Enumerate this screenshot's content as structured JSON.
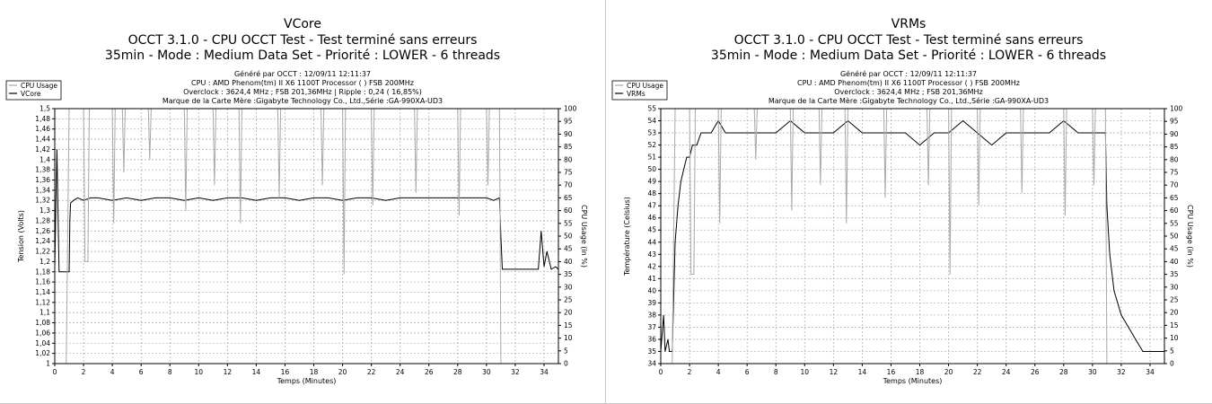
{
  "charts": [
    {
      "title": "VCore",
      "subtitle1": "OCCT 3.1.0 - CPU OCCT Test - Test terminé sans erreurs",
      "subtitle2": "35min - Mode : Medium Data Set - Priorité : LOWER - 6 threads",
      "info": [
        "Généré par OCCT : 12/09/11 12:11:37",
        "CPU : AMD Phenom(tm) II X6 1100T Processor ( ) FSB 200MHz",
        "Overclock : 3624,4 MHz ; FSB 201,36MHz | Ripple : 0,24 ( 16,85%)",
        "Marque de la Carte Mère :Gigabyte Technology Co., Ltd.,Série :GA-990XA-UD3"
      ],
      "legend": [
        "CPU Usage",
        "VCore"
      ],
      "xlabel": "Temps (Minutes)",
      "ylabel_left": "Tension (Volts)",
      "ylabel_right": "CPU Usage (in %)"
    },
    {
      "title": "VRMs",
      "subtitle1": "OCCT 3.1.0 - CPU OCCT Test - Test terminé sans erreurs",
      "subtitle2": "35min - Mode : Medium Data Set - Priorité : LOWER - 6 threads",
      "info": [
        "Généré par OCCT : 12/09/11 12:11:37",
        "CPU : AMD Phenom(tm) II X6 1100T Processor ( ) FSB 200MHz",
        "Overclock : 3624,4 MHz ; FSB 201,36MHz",
        "Marque de la Carte Mère :Gigabyte Technology Co., Ltd.,Série :GA-990XA-UD3"
      ],
      "legend": [
        "CPU Usage",
        "VRMs"
      ],
      "xlabel": "Temps (Minutes)",
      "ylabel_left": "Température (Celsius)",
      "ylabel_right": "CPU Usage (in %)"
    }
  ],
  "chart_data": [
    {
      "type": "line",
      "title": "VCore",
      "xlabel": "Temps (Minutes)",
      "ylabel": "Tension (Volts)",
      "y2label": "CPU Usage (in %)",
      "xlim": [
        0,
        35
      ],
      "ylim": [
        1,
        1.5
      ],
      "y2lim": [
        0,
        100
      ],
      "xticks": [
        0,
        2,
        4,
        6,
        8,
        10,
        12,
        14,
        16,
        18,
        20,
        22,
        24,
        26,
        28,
        30,
        32,
        34
      ],
      "yticks": [
        "1",
        "1,02",
        "1,04",
        "1,06",
        "1,08",
        "1,1",
        "1,12",
        "1,14",
        "1,16",
        "1,18",
        "1,2",
        "1,22",
        "1,24",
        "1,26",
        "1,28",
        "1,3",
        "1,32",
        "1,34",
        "1,36",
        "1,38",
        "1,4",
        "1,42",
        "1,44",
        "1,46",
        "1,48",
        "1,5"
      ],
      "y2ticks": [
        0,
        5,
        10,
        15,
        20,
        25,
        30,
        35,
        40,
        45,
        50,
        55,
        60,
        65,
        70,
        75,
        80,
        85,
        90,
        95,
        100
      ],
      "grid": true,
      "legend_position": "top-left",
      "series": [
        {
          "name": "VCore",
          "axis": "left",
          "color": "#000000",
          "x": [
            0,
            0.15,
            0.3,
            0.5,
            0.8,
            1.0,
            1.05,
            1.1,
            1.3,
            1.6,
            2.0,
            2.5,
            3.0,
            4.0,
            5.0,
            6.0,
            7.0,
            8.0,
            9.0,
            10.0,
            11.0,
            12.0,
            13.0,
            14.0,
            15.0,
            16.0,
            17.0,
            18.0,
            19.0,
            20.0,
            21.0,
            22.0,
            23.0,
            24.0,
            25.0,
            26.0,
            27.0,
            28.0,
            29.0,
            30.0,
            30.5,
            30.9,
            31.0,
            31.1,
            32.0,
            33.0,
            33.6,
            33.8,
            34.0,
            34.2,
            34.5,
            34.8,
            35.0
          ],
          "y": [
            1.19,
            1.42,
            1.18,
            1.18,
            1.18,
            1.18,
            1.28,
            1.315,
            1.32,
            1.325,
            1.32,
            1.325,
            1.325,
            1.32,
            1.325,
            1.32,
            1.325,
            1.325,
            1.32,
            1.325,
            1.32,
            1.325,
            1.325,
            1.32,
            1.325,
            1.325,
            1.32,
            1.325,
            1.325,
            1.32,
            1.325,
            1.325,
            1.32,
            1.325,
            1.325,
            1.325,
            1.325,
            1.325,
            1.325,
            1.325,
            1.32,
            1.325,
            1.25,
            1.185,
            1.185,
            1.185,
            1.185,
            1.26,
            1.19,
            1.22,
            1.185,
            1.19,
            1.185
          ]
        },
        {
          "name": "CPU Usage",
          "axis": "right",
          "color": "#a8a8a8",
          "x": [
            0,
            0.8,
            1.0,
            1.1,
            2.0,
            2.1,
            2.3,
            2.4,
            3.0,
            4.0,
            4.1,
            4.2,
            4.7,
            4.8,
            4.9,
            6.0,
            6.5,
            6.6,
            6.7,
            8.0,
            9.0,
            9.1,
            9.2,
            10.0,
            11.0,
            11.1,
            11.2,
            12.0,
            12.8,
            12.9,
            13.0,
            14.0,
            15.5,
            15.6,
            15.7,
            17.0,
            18.5,
            18.6,
            18.7,
            20.0,
            20.1,
            20.2,
            20.3,
            21.0,
            22.0,
            22.1,
            22.2,
            24.0,
            25.0,
            25.1,
            25.2,
            27.0,
            28.0,
            28.1,
            28.2,
            29.5,
            30.0,
            30.1,
            30.2,
            30.9,
            31.0,
            35.0
          ],
          "y": [
            0,
            0,
            100,
            100,
            100,
            40,
            40,
            100,
            100,
            100,
            55,
            100,
            100,
            75,
            100,
            100,
            100,
            80,
            100,
            100,
            100,
            60,
            100,
            100,
            100,
            70,
            100,
            100,
            100,
            55,
            100,
            100,
            100,
            65,
            100,
            100,
            100,
            70,
            100,
            100,
            35,
            100,
            100,
            100,
            100,
            62,
            100,
            100,
            100,
            67,
            100,
            100,
            100,
            58,
            100,
            100,
            100,
            70,
            100,
            100,
            0,
            0
          ]
        }
      ]
    },
    {
      "type": "line",
      "title": "VRMs",
      "xlabel": "Temps (Minutes)",
      "ylabel": "Température (Celsius)",
      "y2label": "CPU Usage (in %)",
      "xlim": [
        0,
        35
      ],
      "ylim": [
        34,
        55
      ],
      "y2lim": [
        0,
        100
      ],
      "xticks": [
        0,
        2,
        4,
        6,
        8,
        10,
        12,
        14,
        16,
        18,
        20,
        22,
        24,
        26,
        28,
        30,
        32,
        34
      ],
      "yticks": [
        "34",
        "35",
        "36",
        "37",
        "38",
        "39",
        "40",
        "41",
        "42",
        "43",
        "44",
        "45",
        "46",
        "47",
        "48",
        "49",
        "50",
        "51",
        "52",
        "53",
        "54",
        "55"
      ],
      "y2ticks": [
        0,
        5,
        10,
        15,
        20,
        25,
        30,
        35,
        40,
        45,
        50,
        55,
        60,
        65,
        70,
        75,
        80,
        85,
        90,
        95,
        100
      ],
      "grid": true,
      "legend_position": "top-left",
      "series": [
        {
          "name": "VRMs",
          "axis": "left",
          "color": "#000000",
          "x": [
            0,
            0.2,
            0.3,
            0.5,
            0.6,
            0.8,
            1.0,
            1.2,
            1.4,
            1.6,
            1.8,
            2.0,
            2.2,
            2.5,
            2.8,
            3.0,
            3.5,
            4.0,
            4.5,
            5.0,
            6.0,
            7.0,
            8.0,
            9.0,
            10.0,
            11.0,
            12.0,
            13.0,
            14.0,
            15.0,
            16.0,
            17.0,
            18.0,
            19.0,
            20.0,
            21.0,
            22.0,
            23.0,
            24.0,
            25.0,
            26.0,
            27.0,
            28.0,
            29.0,
            30.0,
            30.5,
            30.9,
            31.0,
            31.2,
            31.5,
            32.0,
            32.5,
            33.0,
            33.5,
            34.0,
            35.0
          ],
          "y": [
            35,
            38,
            35,
            36,
            35,
            35,
            44,
            47,
            49,
            50,
            51,
            51,
            52,
            52,
            53,
            53,
            53,
            54,
            53,
            53,
            53,
            53,
            53,
            54,
            53,
            53,
            53,
            54,
            53,
            53,
            53,
            53,
            52,
            53,
            53,
            54,
            53,
            52,
            53,
            53,
            53,
            53,
            54,
            53,
            53,
            53,
            53,
            47,
            43,
            40,
            38,
            37,
            36,
            35,
            35,
            35
          ]
        },
        {
          "name": "CPU Usage",
          "axis": "right",
          "color": "#a8a8a8",
          "x": [
            0,
            0.8,
            1.0,
            1.1,
            2.0,
            2.1,
            2.3,
            2.4,
            3.0,
            4.0,
            4.1,
            4.2,
            6.5,
            6.6,
            6.7,
            9.0,
            9.1,
            9.2,
            11.0,
            11.1,
            11.2,
            12.8,
            12.9,
            13.0,
            15.5,
            15.6,
            15.7,
            18.5,
            18.6,
            18.7,
            20.0,
            20.1,
            20.2,
            22.0,
            22.1,
            22.2,
            25.0,
            25.1,
            25.2,
            28.0,
            28.1,
            28.2,
            30.0,
            30.1,
            30.2,
            30.9,
            31.0,
            35.0
          ],
          "y": [
            0,
            0,
            100,
            100,
            100,
            35,
            35,
            100,
            100,
            100,
            55,
            100,
            100,
            80,
            100,
            100,
            60,
            100,
            100,
            70,
            100,
            100,
            55,
            100,
            100,
            65,
            100,
            100,
            70,
            100,
            100,
            35,
            100,
            100,
            62,
            100,
            100,
            67,
            100,
            100,
            58,
            100,
            100,
            70,
            100,
            100,
            0,
            0
          ]
        }
      ]
    }
  ]
}
